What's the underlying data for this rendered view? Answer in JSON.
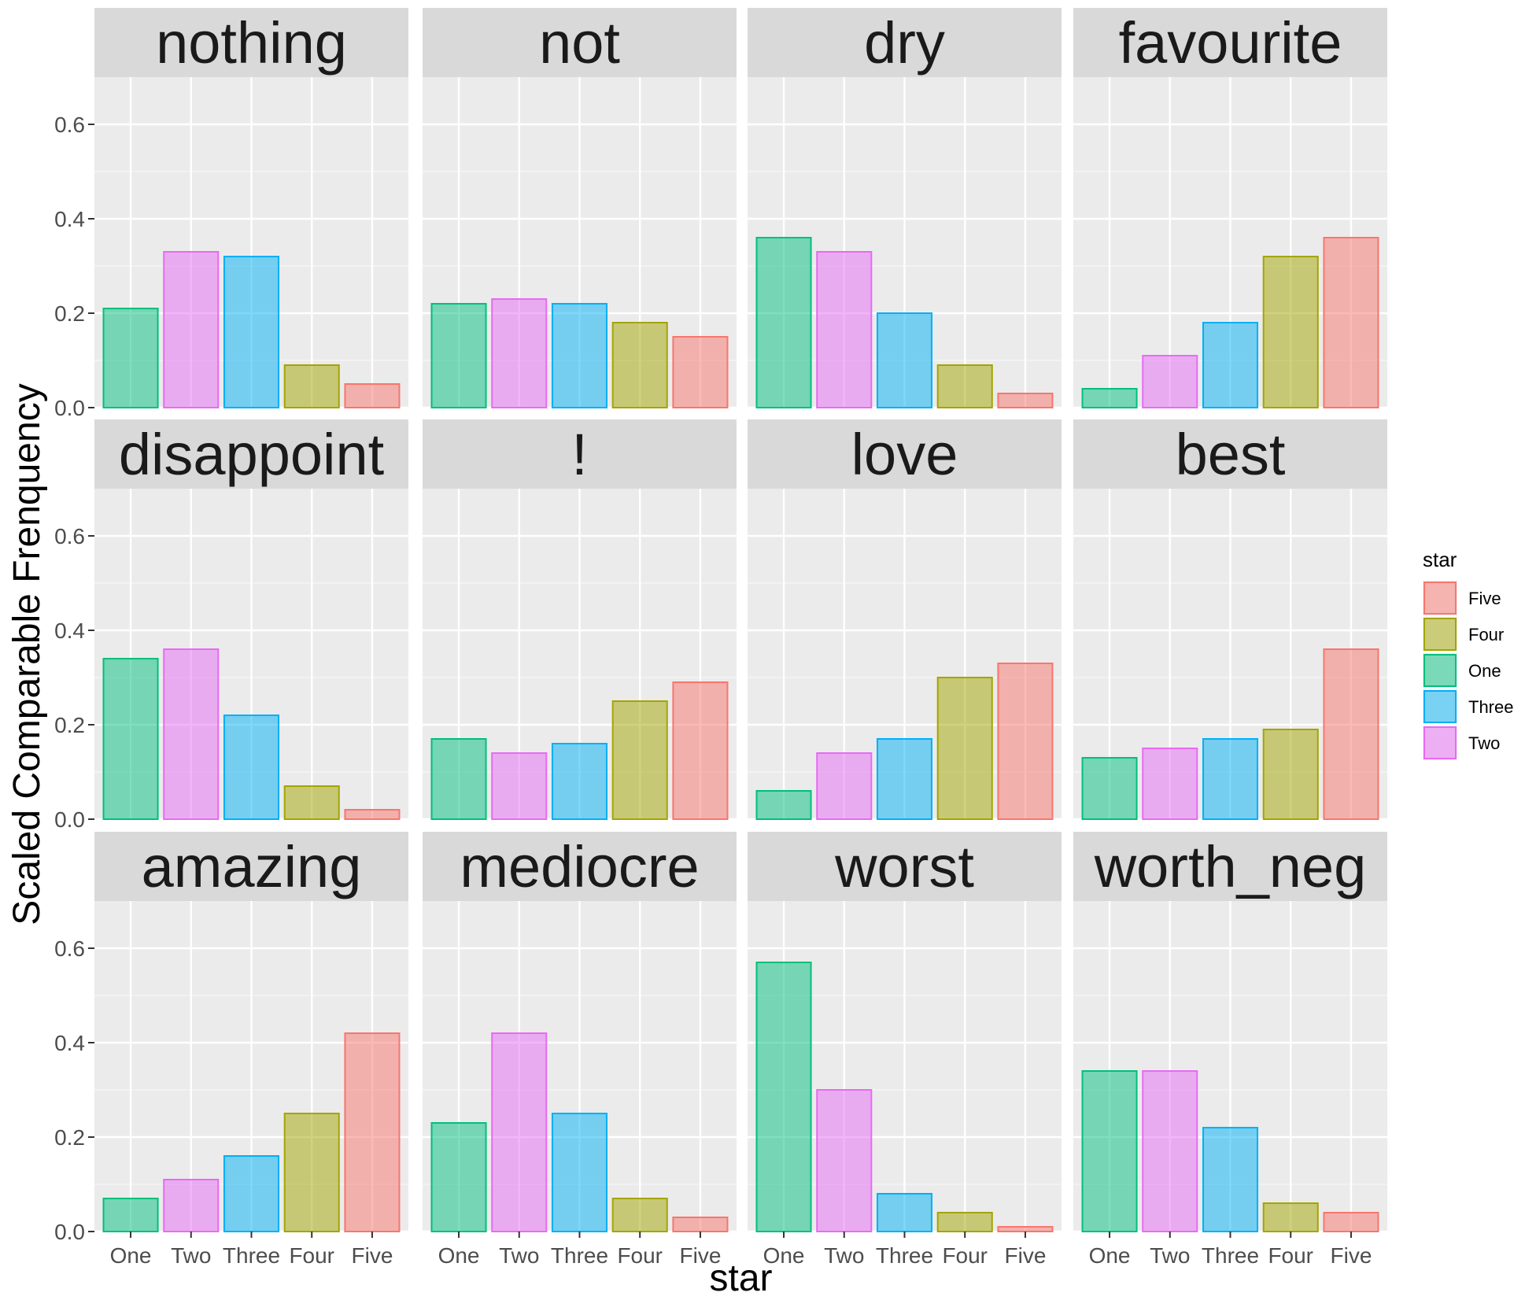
{
  "chart_data": {
    "type": "bar",
    "layout": "facet-grid",
    "xlabel": "star",
    "ylabel": "Scaled Comparable Frenquency",
    "ylim": [
      0,
      0.7
    ],
    "yticks": [
      "0.0",
      "0.2",
      "0.4",
      "0.6"
    ],
    "categories": [
      "One",
      "Two",
      "Three",
      "Four",
      "Five"
    ],
    "grid": true,
    "legend": {
      "title": "star",
      "position": "right",
      "entries": [
        {
          "label": "Five",
          "color": "#F8766D"
        },
        {
          "label": "Four",
          "color": "#A3A500"
        },
        {
          "label": "One",
          "color": "#00BF7D"
        },
        {
          "label": "Three",
          "color": "#00B0F6"
        },
        {
          "label": "Two",
          "color": "#E76BF3"
        }
      ]
    },
    "category_colors": {
      "One": "#00BF7D",
      "Two": "#E76BF3",
      "Three": "#00B0F6",
      "Four": "#A3A500",
      "Five": "#F8766D"
    },
    "panels": [
      {
        "title": "nothing",
        "values": [
          0.21,
          0.33,
          0.32,
          0.09,
          0.05
        ]
      },
      {
        "title": "not",
        "values": [
          0.22,
          0.23,
          0.22,
          0.18,
          0.15
        ]
      },
      {
        "title": "dry",
        "values": [
          0.36,
          0.33,
          0.2,
          0.09,
          0.03
        ]
      },
      {
        "title": "favourite",
        "values": [
          0.04,
          0.11,
          0.18,
          0.32,
          0.36
        ]
      },
      {
        "title": "disappoint",
        "values": [
          0.34,
          0.36,
          0.22,
          0.07,
          0.02
        ]
      },
      {
        "title": "!",
        "values": [
          0.17,
          0.14,
          0.16,
          0.25,
          0.29
        ]
      },
      {
        "title": "love",
        "values": [
          0.06,
          0.14,
          0.17,
          0.3,
          0.33
        ]
      },
      {
        "title": "best",
        "values": [
          0.13,
          0.15,
          0.17,
          0.19,
          0.36
        ]
      },
      {
        "title": "amazing",
        "values": [
          0.07,
          0.11,
          0.16,
          0.25,
          0.42
        ]
      },
      {
        "title": "mediocre",
        "values": [
          0.23,
          0.42,
          0.25,
          0.07,
          0.03
        ]
      },
      {
        "title": "worst",
        "values": [
          0.57,
          0.3,
          0.08,
          0.04,
          0.01
        ]
      },
      {
        "title": "worth_neg",
        "values": [
          0.34,
          0.34,
          0.22,
          0.06,
          0.04
        ]
      }
    ]
  }
}
